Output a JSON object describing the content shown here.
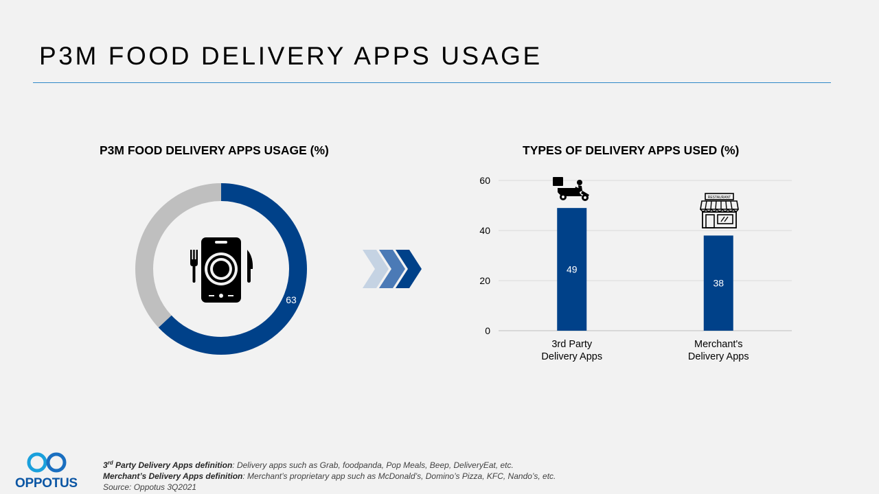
{
  "page": {
    "title": "P3M FOOD DELIVERY APPS USAGE"
  },
  "colors": {
    "primary": "#004189",
    "light_grey": "#bfbfbf",
    "rule": "#2e88c8",
    "chevron_light": "#c5d3e3",
    "chevron_mid": "#4b7ab6"
  },
  "icons": {
    "center": "phone-food-icon",
    "bar1": "scooter-delivery-icon",
    "bar2": "restaurant-storefront-icon"
  },
  "chart_data": [
    {
      "type": "pie",
      "variant": "donut",
      "title": "P3M FOOD DELIVERY APPS USAGE (%)",
      "values": [
        63,
        37
      ],
      "labels": [
        "63",
        ""
      ]
    },
    {
      "type": "bar",
      "title": "TYPES OF DELIVERY APPS USED (%)",
      "categories": [
        "3rd Party Delivery Apps",
        "Merchant's Delivery Apps"
      ],
      "category_lines": [
        [
          "3rd Party",
          "Delivery Apps"
        ],
        [
          "Merchant's",
          "Delivery Apps"
        ]
      ],
      "values": [
        49,
        38
      ],
      "yticks": [
        0,
        20,
        40,
        60
      ],
      "ylim": [
        0,
        60
      ],
      "grid": true
    }
  ],
  "footnotes": {
    "line1_sup_prefix": "3",
    "line1_sup": "rd",
    "line1_bold": " Party Delivery Apps definition",
    "line1_text": ": Delivery  apps such as Grab, foodpanda,  Pop Meals,  Beep, DeliveryEat,  etc.",
    "line2_bold": "Merchant’s Delivery Apps definition",
    "line2_text": ": Merchant’s  proprietary  app such as McDonald’s,  Domino’s  Pizza, KFC, Nando’s,  etc.",
    "source": "Source: Oppotus 3Q2021"
  },
  "brand": {
    "name": "OPPOTUS"
  }
}
